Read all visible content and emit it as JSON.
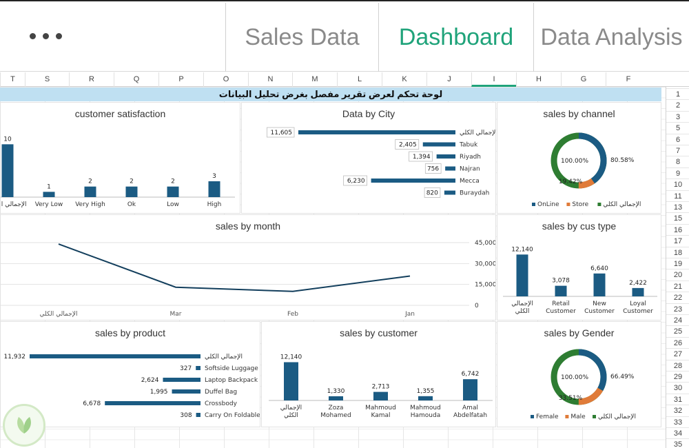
{
  "tabs": [
    {
      "label": "Sales Data",
      "active": false
    },
    {
      "label": "Dashboard",
      "active": true
    },
    {
      "label": "Data Analysis",
      "active": false
    }
  ],
  "columns": [
    "T",
    "S",
    "R",
    "Q",
    "P",
    "O",
    "N",
    "M",
    "L",
    "K",
    "J",
    "I",
    "H",
    "G",
    "F"
  ],
  "active_column": "I",
  "rows": [
    "1",
    "2",
    "3",
    "5",
    "6",
    "7",
    "8",
    "9",
    "10",
    "11",
    "13",
    "15",
    "16",
    "17",
    "18",
    "19",
    "20",
    "21",
    "22",
    "23",
    "24",
    "25",
    "26",
    "27",
    "28",
    "29",
    "30",
    "31",
    "32",
    "33",
    "34",
    "35"
  ],
  "dashboard_title": "لوحة تحكم لعرض تقرير مفصل بغرض تحليل البيانات",
  "colors": {
    "bar": "#1b5b83",
    "orange": "#e07b39",
    "green": "#2e7d32",
    "accent": "#1fa37a",
    "title_bg": "#bfe0f2"
  },
  "panels": {
    "customer_satisfaction": {
      "title": "customer satisfaction"
    },
    "data_by_city": {
      "title": "Data by City"
    },
    "sales_by_channel": {
      "title": "sales by channel"
    },
    "sales_by_month": {
      "title": "sales by month"
    },
    "sales_by_cus_type": {
      "title": "sales by cus type"
    },
    "sales_by_product": {
      "title": "sales by product"
    },
    "sales_by_customer": {
      "title": "sales by customer"
    },
    "sales_by_gender": {
      "title": "sales by Gender"
    }
  },
  "chart_data": [
    {
      "id": "customer_satisfaction",
      "type": "bar",
      "title": "customer satisfaction",
      "categories": [
        "الإجمالي الكلي",
        "Very Low",
        "Very High",
        "Ok",
        "Low",
        "High"
      ],
      "values": [
        10,
        1,
        2,
        2,
        2,
        3
      ],
      "ylim": [
        0,
        12
      ]
    },
    {
      "id": "data_by_city",
      "type": "bar",
      "orientation": "horizontal",
      "title": "Data by City",
      "categories": [
        "الإجمالي الكلي",
        "Tabuk",
        "Riyadh",
        "Najran",
        "Mecca",
        "Buraydah"
      ],
      "values": [
        11605,
        2405,
        1394,
        756,
        6230,
        820
      ],
      "labels": [
        "11,605",
        "2,405",
        "1,394",
        "756",
        "6,230",
        "820"
      ]
    },
    {
      "id": "sales_by_channel",
      "type": "pie",
      "style": "donut",
      "title": "sales by channel",
      "labels": [
        "OnLine",
        "Store",
        "الإجمالي الكلي"
      ],
      "values": [
        80.58,
        19.42,
        100
      ],
      "data_labels": [
        "80.58%",
        "19.42%",
        "100.00%"
      ],
      "legend": [
        "OnLine",
        "Store",
        "الإجمالي الكلي"
      ],
      "legend_position": "bottom"
    },
    {
      "id": "sales_by_month",
      "type": "line",
      "title": "sales by month",
      "categories": [
        "الإجمالي الكلي",
        "Mar",
        "Feb",
        "Jan"
      ],
      "values": [
        44000,
        13000,
        10000,
        21000
      ],
      "ylim": [
        0,
        45000
      ],
      "yticks": [
        "0",
        "15,000",
        "30,000",
        "45,000"
      ],
      "grid": true
    },
    {
      "id": "sales_by_cus_type",
      "type": "bar",
      "title": "sales by cus type",
      "categories": [
        "الإجمالي الكلي",
        "Retail Customer",
        "New Customer",
        "Loyal Customer"
      ],
      "values": [
        12140,
        3078,
        6640,
        2422
      ],
      "labels": [
        "12,140",
        "3,078",
        "6,640",
        "2,422"
      ],
      "ylim": [
        0,
        14000
      ]
    },
    {
      "id": "sales_by_product",
      "type": "bar",
      "orientation": "horizontal",
      "title": "sales by product",
      "categories": [
        "الإجمالي الكلي",
        "Softside Luggage",
        "Laptop Backpack",
        "Duffel Bag",
        "Crossbody",
        "Carry On Foldable"
      ],
      "values": [
        11932,
        327,
        2624,
        1995,
        6678,
        308
      ],
      "labels": [
        "11,932",
        "327",
        "2,624",
        "1,995",
        "6,678",
        "308"
      ]
    },
    {
      "id": "sales_by_customer",
      "type": "bar",
      "title": "sales by customer",
      "categories": [
        "الإجمالي الكلي",
        "Zoza Mohamed",
        "Mahmoud Kamal",
        "Mahmoud Hamouda",
        "Amal Abdelfatah"
      ],
      "values": [
        12140,
        1330,
        2713,
        1355,
        6742
      ],
      "labels": [
        "12,140",
        "1,330",
        "2,713",
        "1,355",
        "6,742"
      ],
      "ylim": [
        0,
        14000
      ]
    },
    {
      "id": "sales_by_gender",
      "type": "pie",
      "style": "donut",
      "title": "sales by Gender",
      "labels": [
        "Female",
        "Male",
        "الإجمالي الكلي"
      ],
      "values": [
        66.49,
        33.51,
        100
      ],
      "data_labels": [
        "66.49%",
        "33.51%",
        "100.00%"
      ],
      "legend": [
        "Female",
        "Male",
        "الإجمالي الكلي"
      ],
      "legend_position": "bottom"
    }
  ]
}
